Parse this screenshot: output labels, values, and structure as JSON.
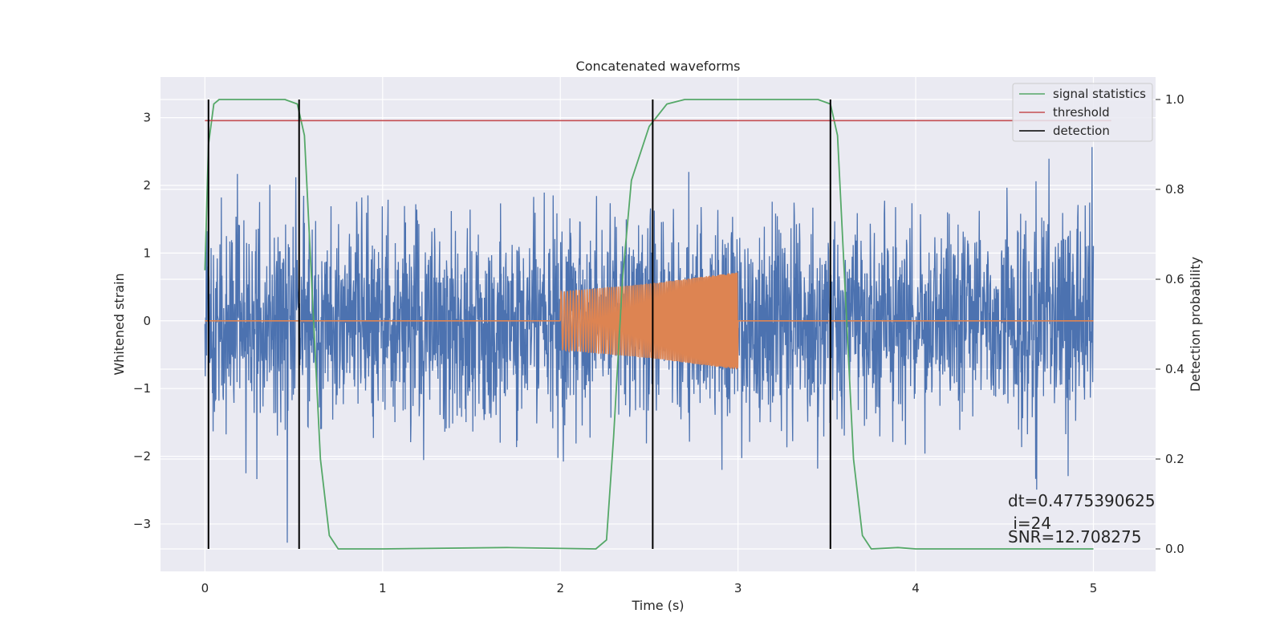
{
  "chart_data": {
    "type": "line",
    "title": "Concatenated waveforms",
    "xlabel": "Time (s)",
    "ylabel": "Whitened strain",
    "y2label": "Detection probability",
    "xlim": [
      -0.25,
      5.35
    ],
    "ylim": [
      -3.7,
      3.6
    ],
    "y2lim": [
      -0.05,
      1.05
    ],
    "x_ticks": [
      0,
      1,
      2,
      3,
      4,
      5
    ],
    "y_ticks": [
      -3,
      -2,
      -1,
      0,
      1,
      2,
      3
    ],
    "y2_ticks": [
      0.0,
      0.2,
      0.4,
      0.6,
      0.8,
      1.0
    ],
    "grid": true,
    "legend_position": "top-right",
    "colors": {
      "noise": "#4c72b0",
      "signal": "#dd8452",
      "statistics": "#55a868",
      "threshold": "#c44e52",
      "detection": "#000000",
      "plot_bg": "#eaeaf2",
      "grid": "#ffffff"
    },
    "series": [
      {
        "name": "",
        "role": "whitened-noise",
        "axis": "left",
        "x_range": [
          0,
          5
        ],
        "amplitude_envelope": 3.3
      },
      {
        "name": "",
        "role": "injected-chirp",
        "axis": "left",
        "x": [
          0,
          2.0,
          2.0,
          2.5,
          3.0,
          3.0,
          5.0
        ],
        "envelope": [
          0,
          0,
          0.43,
          0.55,
          0.72,
          0,
          0
        ]
      },
      {
        "name": "signal statistics",
        "role": "statistics",
        "axis": "right",
        "x": [
          0.0,
          0.02,
          0.05,
          0.08,
          0.2,
          0.45,
          0.52,
          0.56,
          0.6,
          0.65,
          0.7,
          0.75,
          1.0,
          1.7,
          2.2,
          2.26,
          2.3,
          2.35,
          2.4,
          2.5,
          2.6,
          2.7,
          3.0,
          3.45,
          3.52,
          3.56,
          3.6,
          3.65,
          3.7,
          3.75,
          3.9,
          4.0,
          5.0
        ],
        "y": [
          0.62,
          0.9,
          0.99,
          1.0,
          1.0,
          1.0,
          0.99,
          0.92,
          0.6,
          0.2,
          0.03,
          0.0,
          0.0,
          0.003,
          0.0,
          0.02,
          0.25,
          0.6,
          0.82,
          0.94,
          0.99,
          1.0,
          1.0,
          1.0,
          0.99,
          0.92,
          0.6,
          0.2,
          0.03,
          0.0,
          0.003,
          0.0,
          0.0
        ]
      },
      {
        "name": "threshold",
        "role": "threshold",
        "axis": "right",
        "x": [
          0,
          5.1
        ],
        "y": [
          0.953,
          0.953
        ]
      },
      {
        "name": "detection",
        "role": "detection",
        "axis": "right",
        "x": [
          0.02,
          0.53,
          2.52,
          3.52
        ],
        "y_range": [
          0.0,
          1.0
        ]
      }
    ],
    "annotations": [
      "dt=0.4775390625",
      " i=24",
      "SNR=12.708275"
    ]
  }
}
